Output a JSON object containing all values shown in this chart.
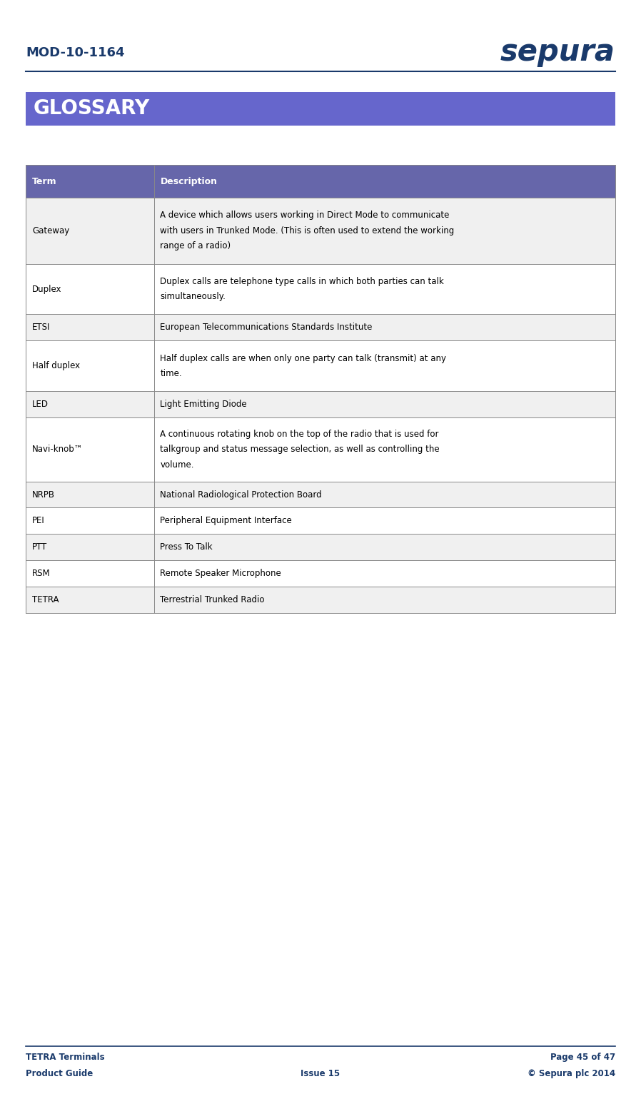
{
  "page_width": 8.98,
  "page_height": 15.4,
  "bg_color": "#ffffff",
  "header_doc_id": "MOD-10-1164",
  "header_logo_text": "sepura",
  "header_text_color": "#1a3a6b",
  "header_line_color": "#1a3a6b",
  "glossary_banner_text": "GLOSSARY",
  "glossary_banner_bg": "#6666cc",
  "glossary_banner_text_color": "#ffffff",
  "table_header_bg": "#6666aa",
  "table_header_text_color": "#ffffff",
  "table_row_bg_odd": "#f0f0f0",
  "table_row_bg_even": "#ffffff",
  "table_border_color": "#888888",
  "table_text_color": "#000000",
  "col1_header": "Term",
  "col2_header": "Description",
  "rows": [
    {
      "term": "Gateway",
      "desc": "A device which allows users working in Direct Mode to communicate\nwith users in Trunked Mode. (This is often used to extend the working\nrange of a radio)"
    },
    {
      "term": "Duplex",
      "desc": "Duplex calls are telephone type calls in which both parties can talk\nsimultaneously."
    },
    {
      "term": "ETSI",
      "desc": "European Telecommunications Standards Institute"
    },
    {
      "term": "Half duplex",
      "desc": "Half duplex calls are when only one party can talk (transmit) at any\ntime."
    },
    {
      "term": "LED",
      "desc": "Light Emitting Diode"
    },
    {
      "term": "Navi-knob™",
      "desc": "A continuous rotating knob on the top of the radio that is used for\ntalkgroup and status message selection, as well as controlling the\nvolume."
    },
    {
      "term": "NRPB",
      "desc": "National Radiological Protection Board"
    },
    {
      "term": "PEI",
      "desc": "Peripheral Equipment Interface"
    },
    {
      "term": "PTT",
      "desc": "Press To Talk"
    },
    {
      "term": "RSM",
      "desc": "Remote Speaker Microphone"
    },
    {
      "term": "TETRA",
      "desc": "Terrestrial Trunked Radio"
    }
  ],
  "footer_left_line1": "TETRA Terminals",
  "footer_left_line2": "Product Guide",
  "footer_center": "Issue 15",
  "footer_right_line1": "Page 45 of 47",
  "footer_right_line2": "© Sepura plc 2014",
  "footer_text_color": "#1a3a6b",
  "footer_line_color": "#1a3a6b"
}
